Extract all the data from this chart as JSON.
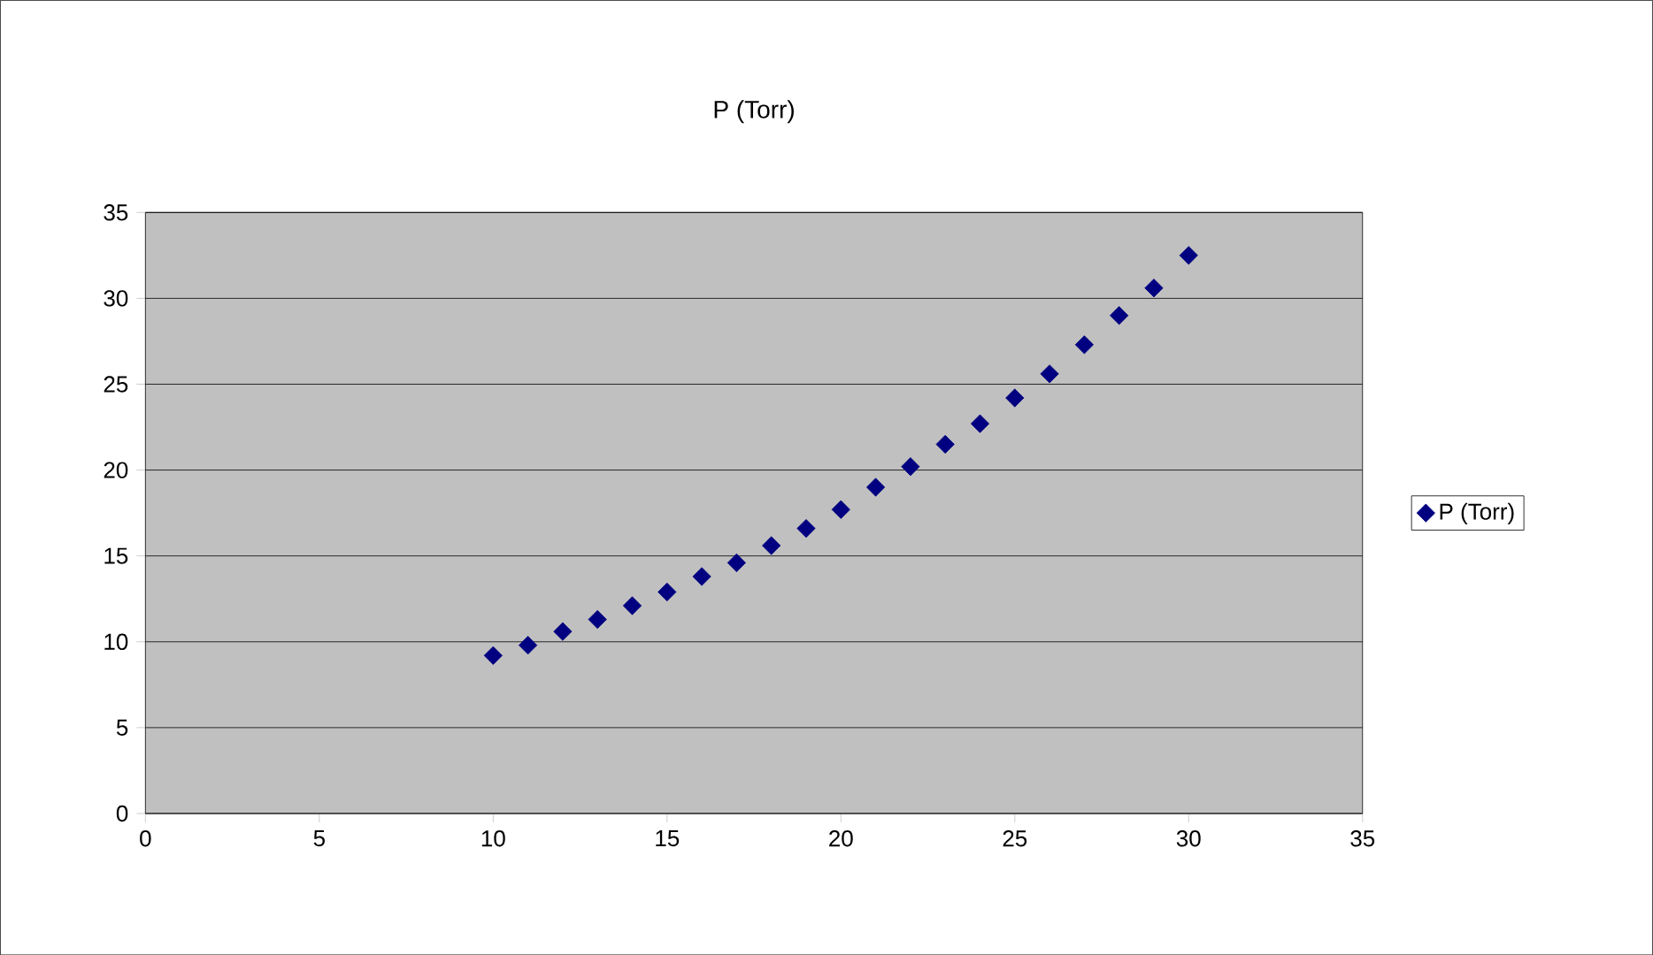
{
  "chart_data": {
    "type": "scatter",
    "title": "P (Torr)",
    "x": [
      10,
      11,
      12,
      13,
      14,
      15,
      16,
      17,
      18,
      19,
      20,
      21,
      22,
      23,
      24,
      25,
      26,
      27,
      28,
      29,
      30
    ],
    "series": [
      {
        "name": "P (Torr)",
        "color": "#000080",
        "values": [
          9.2,
          9.8,
          10.6,
          11.3,
          12.1,
          12.9,
          13.8,
          14.6,
          15.6,
          16.6,
          17.7,
          19.0,
          20.2,
          21.5,
          22.7,
          24.2,
          25.6,
          27.3,
          29.0,
          30.6,
          32.5
        ]
      }
    ],
    "xlim": [
      0,
      35
    ],
    "xticks": [
      0,
      5,
      10,
      15,
      20,
      25,
      30,
      35
    ],
    "ylim": [
      0,
      35
    ],
    "yticks": [
      0,
      5,
      10,
      15,
      20,
      25,
      30,
      35
    ],
    "grid": "y",
    "legend": "right",
    "marker": "diamond"
  }
}
